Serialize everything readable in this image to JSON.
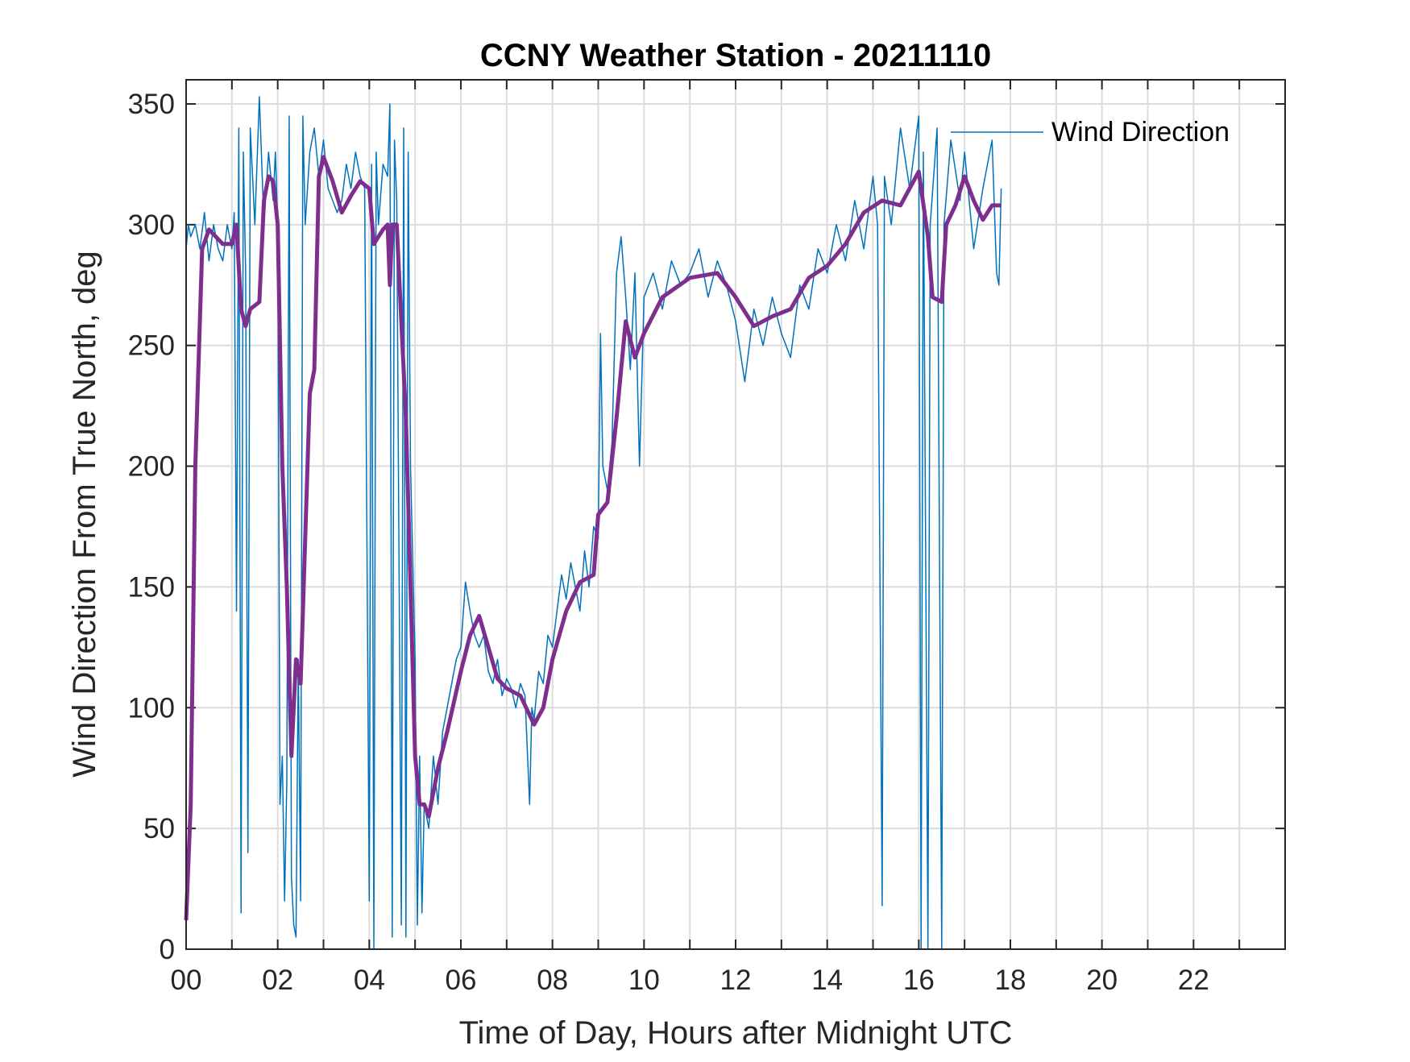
{
  "chart_data": {
    "type": "line",
    "title": "CCNY Weather Station - 20211110",
    "xlabel": "Time of Day, Hours after Midnight UTC",
    "ylabel": "Wind Direction From True North, deg",
    "xlim": [
      0,
      24
    ],
    "xticks": [
      {
        "value": 0,
        "label": "00"
      },
      {
        "value": 2,
        "label": "02"
      },
      {
        "value": 4,
        "label": "04"
      },
      {
        "value": 6,
        "label": "06"
      },
      {
        "value": 8,
        "label": "08"
      },
      {
        "value": 10,
        "label": "10"
      },
      {
        "value": 12,
        "label": "12"
      },
      {
        "value": 14,
        "label": "14"
      },
      {
        "value": 16,
        "label": "16"
      },
      {
        "value": 18,
        "label": "18"
      },
      {
        "value": 20,
        "label": "20"
      },
      {
        "value": 22,
        "label": "22"
      }
    ],
    "xminorticks": [
      1,
      3,
      5,
      7,
      9,
      11,
      13,
      15,
      17,
      19,
      21,
      23
    ],
    "ylim": [
      0,
      360
    ],
    "yticks": [
      0,
      50,
      100,
      150,
      200,
      250,
      300,
      350
    ],
    "grid": true,
    "legend": "upper right",
    "series": [
      {
        "name": "Wind Direction",
        "color": "#0072bd",
        "width": 1.5,
        "x": [
          0.0,
          0.05,
          0.1,
          0.2,
          0.3,
          0.4,
          0.5,
          0.6,
          0.7,
          0.8,
          0.9,
          1.0,
          1.05,
          1.1,
          1.15,
          1.2,
          1.25,
          1.3,
          1.35,
          1.4,
          1.5,
          1.6,
          1.7,
          1.8,
          1.9,
          1.95,
          2.0,
          2.05,
          2.1,
          2.15,
          2.2,
          2.25,
          2.3,
          2.35,
          2.4,
          2.45,
          2.5,
          2.55,
          2.6,
          2.7,
          2.8,
          2.9,
          3.0,
          3.1,
          3.2,
          3.3,
          3.4,
          3.5,
          3.6,
          3.7,
          3.8,
          3.9,
          4.0,
          4.05,
          4.1,
          4.15,
          4.2,
          4.3,
          4.4,
          4.45,
          4.5,
          4.55,
          4.6,
          4.7,
          4.75,
          4.8,
          4.85,
          4.9,
          5.0,
          5.05,
          5.1,
          5.15,
          5.2,
          5.3,
          5.4,
          5.5,
          5.6,
          5.7,
          5.8,
          5.9,
          6.0,
          6.1,
          6.2,
          6.3,
          6.4,
          6.5,
          6.6,
          6.7,
          6.8,
          6.9,
          7.0,
          7.1,
          7.2,
          7.3,
          7.4,
          7.5,
          7.55,
          7.6,
          7.7,
          7.8,
          7.9,
          8.0,
          8.1,
          8.2,
          8.3,
          8.4,
          8.5,
          8.6,
          8.7,
          8.8,
          8.9,
          9.0,
          9.05,
          9.1,
          9.2,
          9.3,
          9.4,
          9.5,
          9.6,
          9.7,
          9.8,
          9.9,
          10.0,
          10.2,
          10.4,
          10.6,
          10.8,
          11.0,
          11.2,
          11.4,
          11.6,
          11.8,
          12.0,
          12.2,
          12.4,
          12.6,
          12.8,
          13.0,
          13.2,
          13.4,
          13.6,
          13.8,
          14.0,
          14.2,
          14.4,
          14.6,
          14.8,
          15.0,
          15.1,
          15.2,
          15.25,
          15.4,
          15.6,
          15.8,
          16.0,
          16.05,
          16.1,
          16.2,
          16.25,
          16.4,
          16.5,
          16.55,
          16.7,
          16.9,
          17.0,
          17.2,
          17.4,
          17.6,
          17.7,
          17.75,
          17.8
        ],
        "values": [
          290,
          300,
          295,
          300,
          290,
          305,
          285,
          300,
          290,
          285,
          300,
          290,
          305,
          140,
          340,
          15,
          330,
          280,
          40,
          340,
          300,
          353,
          300,
          330,
          310,
          330,
          300,
          60,
          80,
          20,
          70,
          345,
          30,
          10,
          5,
          120,
          20,
          345,
          300,
          330,
          340,
          320,
          335,
          315,
          310,
          305,
          310,
          325,
          315,
          330,
          320,
          315,
          20,
          325,
          0,
          330,
          300,
          325,
          320,
          350,
          5,
          335,
          310,
          10,
          340,
          5,
          330,
          200,
          120,
          10,
          80,
          15,
          60,
          50,
          80,
          60,
          90,
          100,
          110,
          120,
          125,
          152,
          140,
          130,
          125,
          130,
          115,
          110,
          120,
          105,
          112,
          108,
          100,
          110,
          105,
          60,
          100,
          95,
          115,
          110,
          130,
          125,
          140,
          155,
          145,
          160,
          150,
          140,
          165,
          150,
          175,
          170,
          255,
          200,
          190,
          210,
          280,
          295,
          270,
          240,
          280,
          200,
          270,
          280,
          265,
          285,
          275,
          280,
          290,
          270,
          285,
          275,
          260,
          235,
          265,
          250,
          270,
          255,
          245,
          275,
          265,
          290,
          280,
          300,
          285,
          310,
          290,
          320,
          300,
          18,
          320,
          300,
          340,
          315,
          345,
          0,
          330,
          0,
          300,
          340,
          0,
          300,
          335,
          310,
          330,
          290,
          315,
          335,
          280,
          275,
          315
        ]
      },
      {
        "color": "#7e2f8e",
        "width": 5,
        "x": [
          0,
          0.1,
          0.2,
          0.35,
          0.5,
          0.8,
          1.0,
          1.1,
          1.2,
          1.3,
          1.4,
          1.6,
          1.7,
          1.8,
          1.9,
          2.0,
          2.1,
          2.2,
          2.3,
          2.4,
          2.5,
          2.6,
          2.7,
          2.8,
          2.9,
          3.0,
          3.2,
          3.4,
          3.6,
          3.8,
          4.0,
          4.1,
          4.3,
          4.4,
          4.45,
          4.5,
          4.6,
          4.8,
          4.9,
          5.0,
          5.1,
          5.2,
          5.3,
          5.5,
          5.7,
          6.0,
          6.2,
          6.4,
          6.6,
          6.8,
          7.0,
          7.3,
          7.6,
          7.8,
          8.0,
          8.3,
          8.6,
          8.9,
          9.0,
          9.2,
          9.4,
          9.6,
          9.8,
          10.0,
          10.4,
          11.0,
          11.6,
          12.0,
          12.4,
          12.8,
          13.2,
          13.6,
          14.0,
          14.4,
          14.8,
          15.2,
          15.6,
          16.0,
          16.2,
          16.3,
          16.5,
          16.6,
          16.8,
          17.0,
          17.2,
          17.4,
          17.6,
          17.8
        ],
        "values": [
          12,
          60,
          200,
          290,
          298,
          292,
          292,
          300,
          265,
          258,
          265,
          268,
          310,
          320,
          318,
          300,
          200,
          150,
          80,
          120,
          110,
          170,
          230,
          240,
          320,
          328,
          318,
          305,
          312,
          318,
          315,
          292,
          298,
          300,
          275,
          300,
          300,
          220,
          150,
          80,
          60,
          60,
          55,
          75,
          90,
          115,
          130,
          138,
          125,
          112,
          108,
          105,
          93,
          100,
          120,
          140,
          152,
          155,
          180,
          185,
          220,
          260,
          245,
          255,
          270,
          278,
          280,
          270,
          258,
          262,
          265,
          278,
          283,
          292,
          305,
          310,
          308,
          322,
          295,
          270,
          268,
          300,
          308,
          320,
          310,
          302,
          308,
          308
        ]
      }
    ]
  }
}
